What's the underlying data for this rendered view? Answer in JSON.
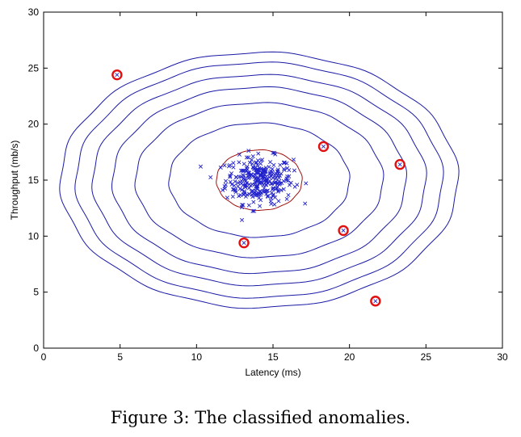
{
  "caption": "Figure 3: The classified anomalies.",
  "chart_data": {
    "type": "scatter",
    "title": "",
    "xlabel": "Latency (ms)",
    "ylabel": "Throughput (mb/s)",
    "xlim": [
      0,
      30
    ],
    "ylim": [
      0,
      30
    ],
    "xticks": [
      0,
      5,
      10,
      15,
      20,
      25,
      30
    ],
    "yticks": [
      0,
      5,
      10,
      15,
      20,
      25,
      30
    ],
    "grid": false,
    "colors": {
      "points": "#2222cc",
      "contours": "#1a1aa6",
      "threshold_contour": "#a01010",
      "anomaly_circle": "#e01010"
    },
    "contours": [
      {
        "cx": 14.1,
        "cy": 15.0,
        "rx": 2.8,
        "ry": 2.7,
        "color": "threshold"
      },
      {
        "cx": 14.1,
        "cy": 15.0,
        "rx": 5.9,
        "ry": 5.1
      },
      {
        "cx": 14.1,
        "cy": 15.0,
        "rx": 8.1,
        "ry": 6.9
      },
      {
        "cx": 14.1,
        "cy": 15.0,
        "rx": 9.6,
        "ry": 8.3
      },
      {
        "cx": 14.1,
        "cy": 15.0,
        "rx": 10.9,
        "ry": 9.4
      },
      {
        "cx": 14.1,
        "cy": 15.0,
        "rx": 12.0,
        "ry": 10.5
      },
      {
        "cx": 14.1,
        "cy": 15.0,
        "rx": 13.0,
        "ry": 11.4
      }
    ],
    "cluster": {
      "mean": [
        14.1,
        15.0
      ],
      "std": [
        1.1,
        1.05
      ],
      "count": 300
    },
    "anomalies": [
      {
        "x": 4.8,
        "y": 24.4
      },
      {
        "x": 18.3,
        "y": 18.0
      },
      {
        "x": 23.3,
        "y": 16.4
      },
      {
        "x": 13.1,
        "y": 9.4
      },
      {
        "x": 19.6,
        "y": 10.5
      },
      {
        "x": 21.7,
        "y": 4.2
      }
    ]
  }
}
